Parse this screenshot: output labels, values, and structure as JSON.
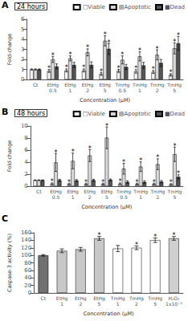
{
  "chart_data": [
    {
      "type": "bar",
      "panel_label": "A",
      "title": "24 hours",
      "xlabel": "Concentration (μM)",
      "ylabel": "Fold-change",
      "categories": [
        "Ct",
        "EtHg\n0.5",
        "EtHg\n1",
        "EtHg\n2",
        "EtHg\n5",
        "TmHg\n0.5",
        "TmHg\n1",
        "TmHg\n2",
        "TmHg\n5"
      ],
      "series": [
        {
          "name": "□Viable",
          "color": "#f2f2f2",
          "values": [
            1.0,
            0.85,
            0.9,
            0.9,
            0.55,
            0.85,
            0.8,
            0.75,
            0.45
          ],
          "errors": [
            0.05,
            0.15,
            0.15,
            0.15,
            0.15,
            0.15,
            0.18,
            0.15,
            0.12
          ],
          "annotations": [
            null,
            "*",
            "*",
            "*",
            "*",
            "*",
            "*",
            "*",
            "*"
          ]
        },
        {
          "name": "▨Apoptotic",
          "color": "#d8d8d8",
          "values": [
            1.0,
            2.0,
            2.1,
            2.7,
            3.85,
            1.95,
            2.3,
            2.45,
            3.1
          ],
          "errors": [
            0.05,
            0.3,
            0.25,
            0.35,
            0.5,
            0.4,
            0.45,
            0.5,
            0.55
          ],
          "annotations": [
            null,
            "*",
            "*",
            "*",
            "*",
            "*",
            "*",
            "*",
            "*"
          ]
        },
        {
          "name": "■Dead",
          "color": "#555555",
          "values": [
            1.0,
            1.3,
            1.45,
            1.45,
            3.05,
            1.25,
            1.4,
            1.65,
            3.6
          ],
          "errors": [
            0.05,
            0.25,
            0.25,
            0.3,
            0.55,
            0.25,
            0.3,
            0.35,
            0.7
          ],
          "annotations": [
            null,
            null,
            null,
            null,
            "*",
            null,
            null,
            null,
            "*"
          ]
        }
      ],
      "ylim": [
        0,
        6
      ],
      "yticks": [
        0,
        1,
        2,
        3,
        4,
        5,
        6
      ],
      "grid": false,
      "legend": "upper right"
    },
    {
      "type": "bar",
      "panel_label": "B",
      "title": "48 hours",
      "xlabel": "Concentration (μM)",
      "ylabel": "Fold-change",
      "categories": [
        "Ct",
        "EtHg\n0.5",
        "EtHg\n1",
        "EtHg\n2",
        "EtHg\n5",
        "TmHg\n0.5",
        "TmHg\n1",
        "TmHg\n2",
        "TmHg\n5"
      ],
      "series": [
        {
          "name": "□Viable",
          "color": "#f2f2f2",
          "values": [
            1.0,
            0.4,
            0.35,
            0.35,
            0.35,
            0.4,
            0.35,
            0.35,
            0.3
          ],
          "errors": [
            0.05,
            0.15,
            0.15,
            0.15,
            0.15,
            0.15,
            0.15,
            0.15,
            0.12
          ],
          "annotations": [
            null,
            "*",
            "*",
            "*",
            "*",
            "*",
            "*",
            "*",
            "*"
          ]
        },
        {
          "name": "▨Apoptotic",
          "color": "#d8d8d8",
          "values": [
            1.0,
            3.95,
            4.2,
            5.1,
            8.05,
            2.9,
            3.25,
            3.65,
            5.3
          ],
          "errors": [
            0.05,
            1.5,
            1.3,
            1.0,
            1.8,
            0.9,
            0.8,
            0.9,
            1.2
          ],
          "annotations": [
            null,
            "*",
            "*",
            "*",
            "*",
            "*",
            "*",
            "*",
            "*"
          ]
        },
        {
          "name": "■Dead",
          "color": "#555555",
          "values": [
            1.0,
            1.0,
            0.95,
            1.0,
            1.05,
            0.7,
            0.7,
            0.75,
            1.55
          ],
          "errors": [
            0.05,
            0.15,
            0.15,
            0.15,
            0.15,
            0.2,
            0.2,
            0.2,
            0.35
          ],
          "annotations": [
            null,
            null,
            null,
            null,
            null,
            null,
            null,
            null,
            "*"
          ]
        }
      ],
      "ylim": [
        0,
        10
      ],
      "yticks": [
        0,
        2,
        4,
        6,
        8,
        10
      ],
      "grid": false,
      "legend": "upper right"
    },
    {
      "type": "bar",
      "panel_label": "C",
      "xlabel": "Concentration (μM)",
      "ylabel": "Caspase-3 activity (%)",
      "categories": [
        "Ct",
        "EtHg\n1",
        "EtHg\n2",
        "EtHg\n5",
        "TmHg\n1",
        "TmHg\n2",
        "TmHg\n5",
        "H₂O₂\n1x10⁻³"
      ],
      "values": [
        100,
        112,
        116,
        145,
        118,
        120,
        140,
        145
      ],
      "errors": [
        2.0,
        5.0,
        5.0,
        5.0,
        8.0,
        5.0,
        6.0,
        5.0
      ],
      "colors": [
        "#707070",
        "#c8c8c8",
        "#c8c8c8",
        "#c8c8c8",
        "#ffffff",
        "#ffffff",
        "#ffffff",
        "#d0d0d0"
      ],
      "annotations": [
        null,
        null,
        null,
        "*",
        null,
        "*",
        "*",
        "*"
      ],
      "ylim": [
        0,
        160
      ],
      "yticks": [
        0,
        20,
        40,
        60,
        80,
        100,
        120,
        140,
        160
      ],
      "grid": false
    }
  ]
}
